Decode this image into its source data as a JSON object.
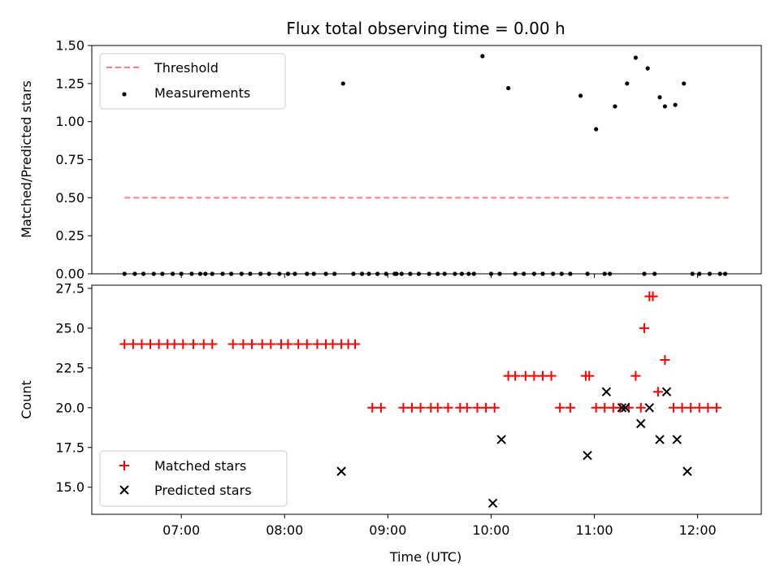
{
  "chart_data": [
    {
      "type": "scatter",
      "title": "Flux total observing time = 0.00 h",
      "ylabel": "Matched/Predicted stars",
      "ylim": [
        0,
        1.5
      ],
      "yticks": [
        "0.00",
        "0.25",
        "0.50",
        "0.75",
        "1.00",
        "1.25",
        "1.50"
      ],
      "xlim": [
        "06:08",
        "12:37"
      ],
      "legend": {
        "placement": "upper-left",
        "entries": [
          "Threshold",
          "Measurements"
        ]
      },
      "threshold": {
        "name": "Threshold",
        "value": 0.5,
        "x_start": "06:27",
        "x_end": "12:18",
        "color": "#ff7f7f"
      },
      "series": [
        {
          "name": "Measurements",
          "color": "#000000",
          "x": [
            "06:27",
            "06:33",
            "06:38",
            "06:44",
            "06:49",
            "06:55",
            "07:00",
            "07:06",
            "07:11",
            "07:14",
            "07:18",
            "07:24",
            "07:29",
            "07:35",
            "07:40",
            "07:46",
            "07:51",
            "07:57",
            "08:02",
            "08:06",
            "08:13",
            "08:17",
            "08:24",
            "08:29",
            "08:34",
            "08:40",
            "08:45",
            "08:49",
            "08:54",
            "08:59",
            "09:04",
            "09:05",
            "09:08",
            "09:13",
            "09:18",
            "09:24",
            "09:29",
            "09:33",
            "09:39",
            "09:43",
            "09:47",
            "09:50",
            "09:55",
            "10:00",
            "10:05",
            "10:10",
            "10:14",
            "10:19",
            "10:25",
            "10:30",
            "10:36",
            "10:41",
            "10:46",
            "10:52",
            "10:56",
            "11:01",
            "11:06",
            "11:09",
            "11:12",
            "11:19",
            "11:24",
            "11:29",
            "11:31",
            "11:35",
            "11:38",
            "11:41",
            "11:47",
            "11:52",
            "11:57",
            "12:01",
            "12:07",
            "12:13",
            "12:16"
          ],
          "y": [
            0,
            0,
            0,
            0,
            0,
            0,
            0,
            0,
            0,
            0,
            0,
            0,
            0,
            0,
            0,
            0,
            0,
            0,
            0,
            0,
            0,
            0,
            0,
            0,
            1.25,
            0,
            0,
            0,
            0,
            0,
            0,
            0,
            0,
            0,
            0,
            0,
            0,
            0,
            0,
            0,
            0,
            0,
            1.43,
            0,
            0,
            1.22,
            0,
            0,
            0,
            0,
            0,
            0,
            0,
            1.17,
            0,
            0.95,
            0,
            0,
            1.1,
            1.25,
            1.42,
            0,
            1.35,
            0,
            1.16,
            1.1,
            1.11,
            1.25,
            0,
            0,
            0,
            0,
            0
          ]
        }
      ]
    },
    {
      "type": "scatter",
      "xlabel": "Time (UTC)",
      "ylabel": "Count",
      "ylim": [
        13.3,
        27.7
      ],
      "yticks": [
        "15.0",
        "17.5",
        "20.0",
        "22.5",
        "25.0",
        "27.5"
      ],
      "xlim": [
        "06:08",
        "12:37"
      ],
      "xticks": [
        "07:00",
        "08:00",
        "09:00",
        "10:00",
        "11:00",
        "12:00"
      ],
      "legend": {
        "placement": "lower-left",
        "entries": [
          "Matched stars",
          "Predicted stars"
        ]
      },
      "series": [
        {
          "name": "Matched stars",
          "marker": "plus",
          "color": "#ff0000",
          "x": [
            "06:27",
            "06:32",
            "06:37",
            "06:42",
            "06:47",
            "06:52",
            "06:56",
            "07:01",
            "07:07",
            "07:13",
            "07:18",
            "07:30",
            "07:36",
            "07:41",
            "07:47",
            "07:52",
            "07:58",
            "08:02",
            "08:08",
            "08:13",
            "08:19",
            "08:24",
            "08:28",
            "08:33",
            "08:37",
            "08:41",
            "08:51",
            "08:56",
            "09:09",
            "09:14",
            "09:19",
            "09:25",
            "09:29",
            "09:35",
            "09:42",
            "09:46",
            "09:52",
            "09:57",
            "10:02",
            "10:10",
            "10:14",
            "10:20",
            "10:25",
            "10:30",
            "10:35",
            "10:40",
            "10:46",
            "10:55",
            "10:57",
            "11:01",
            "11:06",
            "11:11",
            "11:15",
            "11:20",
            "11:24",
            "11:27",
            "11:29",
            "11:32",
            "11:34",
            "11:37",
            "11:41",
            "11:46",
            "11:51",
            "11:56",
            "12:01",
            "12:06",
            "12:11"
          ],
          "y": [
            24,
            24,
            24,
            24,
            24,
            24,
            24,
            24,
            24,
            24,
            24,
            24,
            24,
            24,
            24,
            24,
            24,
            24,
            24,
            24,
            24,
            24,
            24,
            24,
            24,
            24,
            20,
            20,
            20,
            20,
            20,
            20,
            20,
            20,
            20,
            20,
            20,
            20,
            20,
            22,
            22,
            22,
            22,
            22,
            22,
            20,
            20,
            22,
            22,
            20,
            20,
            20,
            20,
            20,
            22,
            20,
            25,
            27,
            27,
            21,
            23,
            20,
            20,
            20,
            20,
            20,
            20
          ]
        },
        {
          "name": "Predicted stars",
          "marker": "x",
          "color": "#000000",
          "x": [
            "08:33",
            "10:01",
            "10:06",
            "10:56",
            "11:07",
            "11:16",
            "11:18",
            "11:27",
            "11:32",
            "11:38",
            "11:42",
            "11:48",
            "11:54"
          ],
          "y": [
            16,
            14,
            18,
            17,
            21,
            20,
            20,
            19,
            20,
            18,
            21,
            18,
            16
          ]
        }
      ]
    }
  ]
}
